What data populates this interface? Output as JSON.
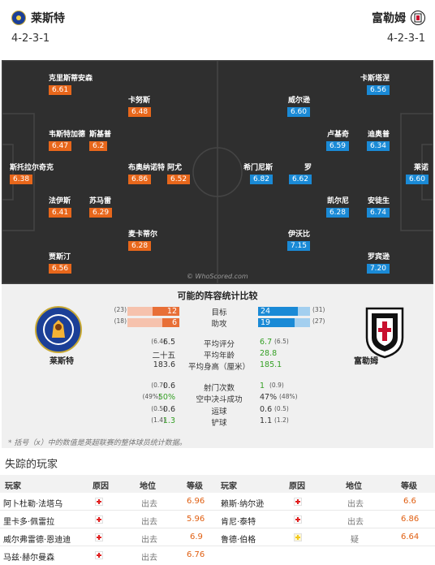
{
  "header": {
    "home_team": "莱斯特",
    "away_team": "富勒姆",
    "home_formation": "4-2-3-1",
    "away_formation": "4-2-3-1"
  },
  "pitch": {
    "watermark": "© WhoScored.com",
    "home_players": [
      {
        "name": "克里斯蒂安森",
        "rating": "6.61"
      },
      {
        "name": "卡努斯",
        "rating": "6.48"
      },
      {
        "name": "韦斯特加德",
        "rating": "6.47"
      },
      {
        "name": "斯基普",
        "rating": "6.2"
      },
      {
        "name": "斯托拉尔奇克",
        "rating": "6.38"
      },
      {
        "name": "布奥纳诺特",
        "rating": "6.86"
      },
      {
        "name": "阿尤",
        "rating": "6.52"
      },
      {
        "name": "法伊斯",
        "rating": "6.41"
      },
      {
        "name": "苏马雷",
        "rating": "6.29"
      },
      {
        "name": "麦卡蒂尔",
        "rating": "6.28"
      },
      {
        "name": "贾斯汀",
        "rating": "6.56"
      }
    ],
    "away_players": [
      {
        "name": "卡斯塔涅",
        "rating": "6.56"
      },
      {
        "name": "威尔逊",
        "rating": "6.60"
      },
      {
        "name": "卢基奇",
        "rating": "6.59"
      },
      {
        "name": "迪奥普",
        "rating": "6.34"
      },
      {
        "name": "莱诺",
        "rating": "6.60"
      },
      {
        "name": "希门尼斯",
        "rating": "6.82"
      },
      {
        "name": "罗",
        "rating": "6.62"
      },
      {
        "name": "凯尔尼",
        "rating": "6.28"
      },
      {
        "name": "安徒生",
        "rating": "6.74"
      },
      {
        "name": "伊沃比",
        "rating": "7.15"
      },
      {
        "name": "罗宾逊",
        "rating": "7.20"
      }
    ]
  },
  "comparison": {
    "title": "可能的阵容统计比较",
    "home_badge_label": "莱斯特",
    "away_badge_label": "富勒姆",
    "bars": [
      {
        "label": "目标",
        "home": "12",
        "away": "24",
        "home_prev": "(23)",
        "away_prev": "(31)",
        "home_frac": 0.52,
        "away_frac": 0.77
      },
      {
        "label": "助攻",
        "home": "6",
        "away": "19",
        "home_prev": "(18)",
        "away_prev": "(27)",
        "home_frac": 0.33,
        "away_frac": 0.7
      }
    ],
    "stats": [
      {
        "label": "平均评分",
        "home": "6.5",
        "away": "6.7",
        "home_prev": "(6.4)",
        "away_prev": "(6.5)",
        "home_green": false,
        "away_green": true
      },
      {
        "label": "平均年龄",
        "home": "二十五",
        "away": "28.8",
        "home_prev": "",
        "away_prev": "",
        "home_green": false,
        "away_green": true
      },
      {
        "label": "平均身高（厘米）",
        "home": "183.6",
        "away": "185.1",
        "home_prev": "",
        "away_prev": "",
        "home_green": false,
        "away_green": true
      },
      {
        "label": "射门次数",
        "home": "0.6",
        "away": "1",
        "home_prev": "(0.7)",
        "away_prev": "(0.9)",
        "home_green": false,
        "away_green": true
      },
      {
        "label": "空中决斗成功",
        "home": "50%",
        "away": "47%",
        "home_prev": "(49%)",
        "away_prev": "(48%)",
        "home_green": true,
        "away_green": false
      },
      {
        "label": "运球",
        "home": "0.6",
        "away": "0.6",
        "home_prev": "(0.5)",
        "away_prev": "(0.5)",
        "home_green": false,
        "away_green": false
      },
      {
        "label": "铲球",
        "home": "1.3",
        "away": "1.1",
        "home_prev": "(1.4)",
        "away_prev": "(1.2)",
        "home_green": true,
        "away_green": false
      }
    ],
    "note": "* 括号（x）中的数值是英超联赛的整体球员统计数据。"
  },
  "missing": {
    "title": "失踪的玩家",
    "headers": {
      "player": "玩家",
      "reason": "原因",
      "status": "地位",
      "rating": "等级"
    },
    "home_rows": [
      {
        "player": "阿卜杜勒·法塔乌",
        "status": "出去",
        "rating": "6.96",
        "doubt": false
      },
      {
        "player": "里卡多·佩雷拉",
        "status": "出去",
        "rating": "5.96",
        "doubt": false
      },
      {
        "player": "威尔弗雷德·恩迪迪",
        "status": "出去",
        "rating": "6.9",
        "doubt": false
      },
      {
        "player": "马兹·赫尔曼森",
        "status": "出去",
        "rating": "6.76",
        "doubt": false
      }
    ],
    "away_rows": [
      {
        "player": "赖斯·纳尔逊",
        "status": "出去",
        "rating": "6.6",
        "doubt": false
      },
      {
        "player": "肯尼·泰特",
        "status": "出去",
        "rating": "6.86",
        "doubt": false
      },
      {
        "player": "鲁德·伯格",
        "status": "疑",
        "rating": "6.64",
        "doubt": true
      }
    ]
  }
}
